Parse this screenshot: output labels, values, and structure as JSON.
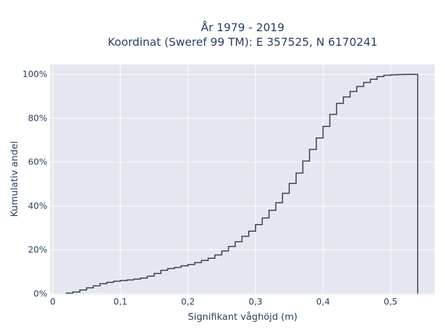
{
  "chart_data": {
    "type": "line",
    "subtype": "ecdf-step",
    "title_line1": "År 1979 - 2019",
    "title_line2": "Koordinat (Sweref 99 TM): E 357525, N 6170241",
    "xlabel": "Signifikant våghöjd (m)",
    "ylabel": "Kumulativ andel",
    "xlim": [
      -0.004,
      0.565
    ],
    "ylim": [
      -0.005,
      1.045
    ],
    "x_ticks": [
      0,
      0.1,
      0.2,
      0.3,
      0.4,
      0.5
    ],
    "x_tick_labels": [
      "0",
      "0,1",
      "0,2",
      "0,3",
      "0,4",
      "0,5"
    ],
    "y_ticks": [
      0,
      0.2,
      0.4,
      0.6,
      0.8,
      1.0
    ],
    "y_tick_labels": [
      "0%",
      "20%",
      "40%",
      "60%",
      "80%",
      "100%"
    ],
    "grid": true,
    "line_color": "#2f3e4f",
    "plot_background": "#e5e7f0",
    "series": [
      {
        "x": [
          0.02,
          0.03,
          0.04,
          0.05,
          0.06,
          0.07,
          0.08,
          0.09,
          0.1,
          0.11,
          0.12,
          0.13,
          0.14,
          0.15,
          0.16,
          0.17,
          0.18,
          0.19,
          0.2,
          0.21,
          0.22,
          0.23,
          0.24,
          0.25,
          0.26,
          0.27,
          0.28,
          0.29,
          0.3,
          0.31,
          0.32,
          0.33,
          0.34,
          0.35,
          0.36,
          0.37,
          0.38,
          0.39,
          0.4,
          0.41,
          0.42,
          0.43,
          0.44,
          0.45,
          0.46,
          0.47,
          0.48,
          0.49,
          0.5,
          0.51,
          0.52,
          0.53,
          0.54
        ],
        "y": [
          0.003,
          0.008,
          0.017,
          0.027,
          0.036,
          0.046,
          0.052,
          0.057,
          0.06,
          0.063,
          0.067,
          0.072,
          0.08,
          0.092,
          0.107,
          0.115,
          0.12,
          0.127,
          0.133,
          0.142,
          0.152,
          0.162,
          0.177,
          0.195,
          0.215,
          0.237,
          0.262,
          0.285,
          0.315,
          0.345,
          0.38,
          0.415,
          0.458,
          0.503,
          0.55,
          0.605,
          0.658,
          0.71,
          0.763,
          0.818,
          0.868,
          0.897,
          0.922,
          0.945,
          0.963,
          0.978,
          0.99,
          0.996,
          0.998,
          0.999,
          1.0,
          1.0,
          0.0
        ]
      }
    ]
  }
}
